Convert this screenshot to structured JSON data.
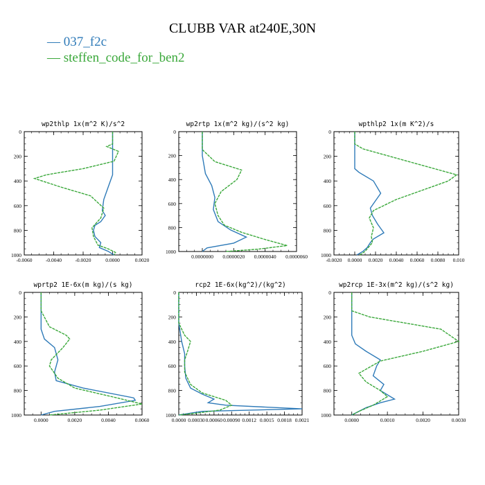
{
  "title": "CLUBB VAR at240E,30N",
  "legend": [
    {
      "label": "— 037_f2c",
      "color": "#2e7ab8"
    },
    {
      "label": "— steffen_code_for_ben2",
      "color": "#3aa83a"
    }
  ],
  "colors": {
    "series1": "#2e7ab8",
    "series2": "#3aa83a"
  },
  "chart_data": [
    {
      "type": "line",
      "title": "wp2thlp  1x(m^2 K)/s^2",
      "xlim": [
        -0.006,
        0.002
      ],
      "ylim": [
        1000,
        0
      ],
      "ylabel": "",
      "xlabel": "",
      "xticks": [
        "-0.0060",
        "-0.0040",
        "-0.0020",
        "0.0000",
        "0.0020"
      ],
      "xtick_values": [
        -0.006,
        -0.004,
        -0.002,
        0.0,
        0.002
      ],
      "yticks": [
        "0",
        "200",
        "400",
        "600",
        "800",
        "1000"
      ],
      "ytick_values": [
        0,
        200,
        400,
        600,
        800,
        1000
      ],
      "series": [
        {
          "name": "037_f2c",
          "x": [
            0.0,
            0.0,
            0.0,
            0.0,
            -0.0003,
            -0.0006,
            -0.0007,
            -0.0005,
            -0.0008,
            -0.0012,
            -0.0013,
            -0.0012,
            -0.0008,
            -0.0009,
            -0.0003,
            0.0001
          ],
          "y": [
            0,
            100,
            200,
            350,
            450,
            550,
            640,
            680,
            730,
            760,
            800,
            850,
            900,
            940,
            970,
            1000
          ]
        },
        {
          "name": "steffen_code_for_ben2",
          "x": [
            0.0,
            0.0,
            -0.0004,
            0.0004,
            0.0001,
            -0.002,
            -0.0045,
            -0.0053,
            -0.0035,
            -0.0015,
            -0.0006,
            -0.0008,
            -0.0011,
            -0.0014,
            -0.0013,
            -0.001,
            -0.0003,
            0.0002,
            0.0001
          ],
          "y": [
            0,
            100,
            120,
            160,
            240,
            300,
            350,
            380,
            450,
            520,
            620,
            700,
            740,
            780,
            850,
            920,
            950,
            980,
            1000
          ]
        }
      ]
    },
    {
      "type": "line",
      "title": "wp2rtp  1x(m^2 kg)/(s^2 kg)",
      "xlim": [
        -1.5e-06,
        6e-06
      ],
      "ylim": [
        1000,
        0
      ],
      "ylabel": "",
      "xlabel": "",
      "xticks": [
        "0.0000000",
        "0.0000020",
        "0.0000040",
        "0.0000060"
      ],
      "xtick_values": [
        0.0,
        2e-06,
        4e-06,
        6e-06
      ],
      "yticks": [
        "0",
        "200",
        "400",
        "600",
        "800",
        "1000"
      ],
      "ytick_values": [
        0,
        200,
        400,
        600,
        800,
        1000
      ],
      "series": [
        {
          "name": "037_f2c",
          "x": [
            0,
            0,
            0,
            2e-07,
            6e-07,
            8e-07,
            7e-07,
            1e-06,
            1.8e-06,
            2.8e-06,
            2e-06,
            3e-07,
            0.0
          ],
          "y": [
            0,
            100,
            200,
            350,
            450,
            550,
            650,
            750,
            820,
            880,
            930,
            970,
            1000
          ]
        },
        {
          "name": "steffen_code_for_ben2",
          "x": [
            0,
            0,
            8e-07,
            2.5e-06,
            2.2e-06,
            1.2e-06,
            8e-07,
            1e-06,
            1.4e-06,
            2.5e-06,
            4e-06,
            5.4e-06,
            3.6e-06,
            1.5e-06
          ],
          "y": [
            0,
            150,
            250,
            320,
            400,
            500,
            600,
            700,
            780,
            840,
            900,
            950,
            980,
            1000
          ]
        }
      ]
    },
    {
      "type": "line",
      "title": "wpthlp2  1x(m K^2)/s",
      "xlim": [
        -0.002,
        0.01
      ],
      "ylim": [
        1000,
        0
      ],
      "ylabel": "",
      "xlabel": "",
      "xticks": [
        "-0.0020",
        "0.0000",
        "0.0020",
        "0.0040",
        "0.0060",
        "0.0080",
        "0.010"
      ],
      "xtick_values": [
        -0.002,
        0.0,
        0.002,
        0.004,
        0.006,
        0.008,
        0.01
      ],
      "yticks": [
        "0",
        "200",
        "400",
        "600",
        "800",
        "1000"
      ],
      "ytick_values": [
        0,
        200,
        400,
        600,
        800,
        1000
      ],
      "series": [
        {
          "name": "037_f2c",
          "x": [
            0,
            0,
            0,
            0.0004,
            0.0018,
            0.0025,
            0.0015,
            0.0017,
            0.0022,
            0.0028,
            0.0018,
            0.0015,
            0.0012,
            0.0008,
            0.0002
          ],
          "y": [
            0,
            100,
            300,
            330,
            400,
            500,
            620,
            680,
            750,
            820,
            870,
            900,
            940,
            970,
            1000
          ]
        },
        {
          "name": "steffen_code_for_ben2",
          "x": [
            0,
            0,
            0.0008,
            0.0055,
            0.0098,
            0.009,
            0.004,
            0.0018,
            0.0014,
            0.0018,
            0.0016,
            0.0017,
            0.0013,
            0.001,
            0.0005
          ],
          "y": [
            0,
            100,
            140,
            250,
            350,
            400,
            550,
            640,
            700,
            780,
            850,
            900,
            940,
            970,
            1000
          ]
        }
      ]
    },
    {
      "type": "line",
      "title": "wprtp2  1E-6x(m kg)/(s kg)",
      "xlim": [
        -0.001,
        0.006
      ],
      "ylim": [
        1000,
        0
      ],
      "ylabel": "",
      "xlabel": "",
      "xticks": [
        "0.0000",
        "0.0020",
        "0.0040",
        "0.0060"
      ],
      "xtick_values": [
        0.0,
        0.002,
        0.004,
        0.006
      ],
      "yticks": [
        "0",
        "200",
        "400",
        "600",
        "800",
        "1000"
      ],
      "ytick_values": [
        0,
        200,
        400,
        600,
        800,
        1000
      ],
      "series": [
        {
          "name": "037_f2c",
          "x": [
            0,
            0,
            0,
            0.0002,
            0.0008,
            0.001,
            0.0008,
            0.0009,
            0.0025,
            0.0055,
            0.0056,
            0.0035,
            0.0008,
            0.0
          ],
          "y": [
            0,
            100,
            300,
            380,
            450,
            550,
            650,
            720,
            780,
            860,
            880,
            930,
            970,
            1000
          ]
        },
        {
          "name": "steffen_code_for_ben2",
          "x": [
            0,
            0,
            0.0005,
            0.0015,
            0.0017,
            0.0013,
            0.0006,
            0.0005,
            0.001,
            0.002,
            0.0045,
            0.006,
            0.0035,
            0.0005
          ],
          "y": [
            0,
            150,
            280,
            350,
            380,
            450,
            550,
            600,
            700,
            780,
            860,
            910,
            960,
            1000
          ]
        }
      ]
    },
    {
      "type": "line",
      "title": "rcp2  1E-6x(kg^2)/(kg^2)",
      "xlim": [
        0.0,
        0.0021
      ],
      "ylim": [
        1000,
        0
      ],
      "ylabel": "",
      "xlabel": "",
      "xticks": [
        "0.0000",
        "0.00030",
        "0.00060",
        "0.00090",
        "0.0012",
        "0.0015",
        "0.0018",
        "0.0021"
      ],
      "xtick_values": [
        0.0,
        0.0003,
        0.0006,
        0.0009,
        0.0012,
        0.0015,
        0.0018,
        0.0021
      ],
      "yticks": [
        "0",
        "200",
        "400",
        "600",
        "800",
        "1000"
      ],
      "ytick_values": [
        0,
        200,
        400,
        600,
        800,
        1000
      ],
      "series": [
        {
          "name": "037_f2c",
          "x": [
            0,
            0,
            5e-05,
            0.0001,
            0.0001,
            0.00012,
            0.0002,
            0.0004,
            0.0006,
            0.0005,
            0.0008,
            0.0021,
            0.0004,
            0.0
          ],
          "y": [
            0,
            250,
            400,
            500,
            600,
            700,
            780,
            830,
            870,
            900,
            920,
            950,
            970,
            1000
          ]
        },
        {
          "name": "steffen_code_for_ben2",
          "x": [
            0,
            0,
            0.0001,
            0.0002,
            0.00015,
            0.0001,
            0.0001,
            0.0002,
            0.0004,
            0.0008,
            0.0009,
            0.0007,
            0.0003,
            0.0
          ],
          "y": [
            0,
            250,
            350,
            400,
            480,
            550,
            650,
            750,
            820,
            880,
            920,
            960,
            985,
            1000
          ]
        }
      ]
    },
    {
      "type": "line",
      "title": "wp2rcp  1E-3x(m^2 kg)/(s^2 kg)",
      "xlim": [
        -0.0005,
        0.003
      ],
      "ylim": [
        1000,
        0
      ],
      "ylabel": "",
      "xlabel": "",
      "xticks": [
        "0.0000",
        "0.0010",
        "0.0020",
        "0.0030"
      ],
      "xtick_values": [
        0.0,
        0.001,
        0.002,
        0.003
      ],
      "yticks": [
        "0",
        "200",
        "400",
        "600",
        "800",
        "1000"
      ],
      "ytick_values": [
        0,
        200,
        400,
        600,
        800,
        1000
      ],
      "series": [
        {
          "name": "037_f2c",
          "x": [
            0,
            0,
            0,
            0.0001,
            0.0004,
            0.0008,
            0.0007,
            0.0006,
            0.0009,
            0.0008,
            0.0012,
            0.0008,
            0.0004,
            0.0
          ],
          "y": [
            0,
            100,
            350,
            420,
            480,
            550,
            600,
            680,
            750,
            800,
            870,
            900,
            940,
            1000
          ]
        },
        {
          "name": "steffen_code_for_ben2",
          "x": [
            0,
            0,
            0.0005,
            0.0025,
            0.003,
            0.002,
            0.0008,
            0.0002,
            0.0004,
            0.0008,
            0.001,
            0.0006,
            0.0002,
            0.0
          ],
          "y": [
            0,
            150,
            200,
            300,
            400,
            480,
            560,
            660,
            730,
            800,
            850,
            920,
            970,
            1000
          ]
        }
      ]
    }
  ]
}
